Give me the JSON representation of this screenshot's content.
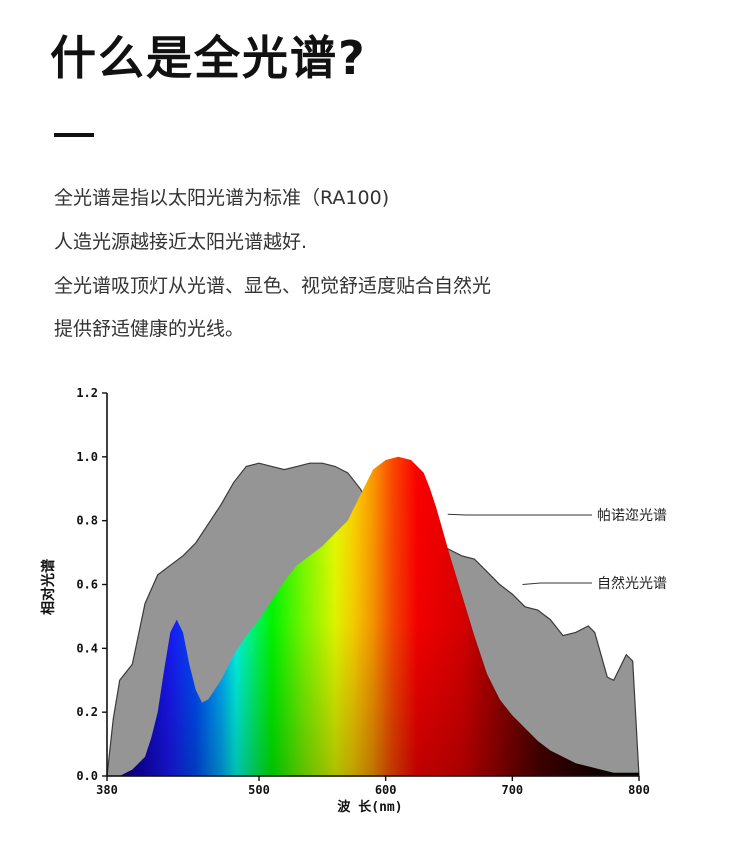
{
  "header": {
    "title": "什么是全光谱?"
  },
  "intro": {
    "lines": [
      "全光谱是指以太阳光谱为标准（RA100)",
      "人造光源越接近太阳光谱越好.",
      "全光谱吸顶灯从光谱、显色、视觉舒适度贴合自然光",
      "提供舒适健康的光线。"
    ]
  },
  "chart_data": {
    "type": "area",
    "xlabel": "波 长(nm)",
    "ylabel": "相对光谱",
    "xlim": [
      380,
      800
    ],
    "ylim": [
      0,
      1.2
    ],
    "xticks": [
      380,
      500,
      600,
      700,
      800
    ],
    "yticks": [
      0.0,
      0.2,
      0.4,
      0.6,
      0.8,
      1.0,
      1.2
    ],
    "ytick_labels": [
      "0.0",
      "0.2",
      "0.4",
      "0.6",
      "0.8",
      "1.0",
      "1.2"
    ],
    "grid": false,
    "series": [
      {
        "name": "自然光光谱",
        "color": "#959595",
        "x": [
          380,
          385,
          390,
          400,
          410,
          420,
          430,
          440,
          450,
          460,
          470,
          480,
          490,
          500,
          510,
          520,
          530,
          540,
          550,
          560,
          570,
          580,
          590,
          600,
          610,
          620,
          630,
          640,
          650,
          660,
          670,
          680,
          690,
          700,
          710,
          720,
          730,
          740,
          750,
          760,
          765,
          770,
          775,
          780,
          785,
          790,
          795,
          800
        ],
        "y": [
          0.0,
          0.18,
          0.3,
          0.35,
          0.54,
          0.63,
          0.66,
          0.69,
          0.73,
          0.79,
          0.85,
          0.92,
          0.97,
          0.98,
          0.97,
          0.96,
          0.97,
          0.98,
          0.98,
          0.97,
          0.95,
          0.9,
          0.83,
          0.78,
          0.76,
          0.74,
          0.74,
          0.73,
          0.71,
          0.69,
          0.68,
          0.64,
          0.6,
          0.57,
          0.53,
          0.52,
          0.49,
          0.44,
          0.45,
          0.47,
          0.45,
          0.38,
          0.31,
          0.3,
          0.34,
          0.38,
          0.36,
          0.0
        ]
      },
      {
        "name": "帕诺迩光谱",
        "x": [
          390,
          400,
          410,
          415,
          420,
          425,
          430,
          435,
          440,
          445,
          450,
          455,
          460,
          470,
          480,
          490,
          500,
          510,
          520,
          530,
          540,
          550,
          560,
          570,
          580,
          590,
          600,
          610,
          620,
          630,
          635,
          640,
          645,
          650,
          660,
          670,
          680,
          690,
          700,
          710,
          720,
          730,
          740,
          750,
          760,
          770,
          780,
          790,
          800
        ],
        "y": [
          0.0,
          0.02,
          0.06,
          0.12,
          0.2,
          0.33,
          0.45,
          0.49,
          0.45,
          0.35,
          0.27,
          0.23,
          0.24,
          0.3,
          0.38,
          0.44,
          0.49,
          0.55,
          0.61,
          0.66,
          0.69,
          0.72,
          0.76,
          0.8,
          0.88,
          0.96,
          0.99,
          1.0,
          0.99,
          0.95,
          0.9,
          0.84,
          0.77,
          0.7,
          0.57,
          0.44,
          0.32,
          0.24,
          0.19,
          0.15,
          0.11,
          0.08,
          0.06,
          0.04,
          0.03,
          0.02,
          0.01,
          0.01,
          0.01
        ]
      }
    ],
    "annotations": [
      {
        "text": "帕诺迩光谱",
        "series": "帕诺迩光谱",
        "x": 649,
        "y": 0.82
      },
      {
        "text": "自然光光谱",
        "series": "自然光光谱",
        "x": 708,
        "y": 0.6
      }
    ]
  }
}
